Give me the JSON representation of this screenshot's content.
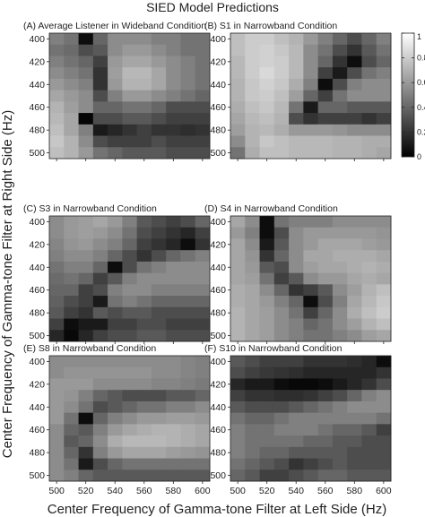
{
  "title": "SIED Model Predictions",
  "xlabel": "Center Frequency of Gamma-tone Filter at Left Side (Hz)",
  "ylabel": "Center Frequency of Gamma-tone Filter at Right Side (Hz)",
  "chart_data": {
    "type": "heatmap",
    "x": [
      500,
      510,
      520,
      530,
      540,
      550,
      560,
      570,
      580,
      590,
      600
    ],
    "y": [
      400,
      410,
      420,
      430,
      440,
      450,
      460,
      470,
      480,
      490,
      500
    ],
    "x_ticks": [
      "500",
      "520",
      "540",
      "560",
      "580",
      "600"
    ],
    "y_ticks": [
      "400",
      "420",
      "440",
      "460",
      "480",
      "500"
    ],
    "colorbar": {
      "range": [
        0,
        1
      ],
      "ticks": [
        "0",
        "0.2",
        "0.4",
        "0.6",
        "0.8",
        "1"
      ],
      "colormap": "gray"
    },
    "panels": [
      {
        "title": "(A) Average Listener in Wideband Condition",
        "values": [
          [
            0.5,
            0.45,
            0.05,
            0.4,
            0.55,
            0.55,
            0.55,
            0.5,
            0.5,
            0.45,
            0.45
          ],
          [
            0.45,
            0.42,
            0.3,
            0.35,
            0.55,
            0.6,
            0.6,
            0.55,
            0.5,
            0.45,
            0.45
          ],
          [
            0.5,
            0.45,
            0.4,
            0.25,
            0.6,
            0.65,
            0.65,
            0.6,
            0.55,
            0.5,
            0.45
          ],
          [
            0.55,
            0.5,
            0.45,
            0.2,
            0.62,
            0.72,
            0.72,
            0.65,
            0.55,
            0.5,
            0.45
          ],
          [
            0.6,
            0.55,
            0.5,
            0.2,
            0.6,
            0.7,
            0.7,
            0.65,
            0.55,
            0.5,
            0.45
          ],
          [
            0.65,
            0.6,
            0.55,
            0.3,
            0.5,
            0.6,
            0.6,
            0.55,
            0.5,
            0.45,
            0.4
          ],
          [
            0.7,
            0.62,
            0.55,
            0.4,
            0.4,
            0.45,
            0.45,
            0.4,
            0.3,
            0.3,
            0.3
          ],
          [
            0.72,
            0.65,
            0.02,
            0.3,
            0.3,
            0.35,
            0.35,
            0.3,
            0.25,
            0.25,
            0.25
          ],
          [
            0.75,
            0.65,
            0.5,
            0.1,
            0.15,
            0.2,
            0.25,
            0.2,
            0.2,
            0.18,
            0.2
          ],
          [
            0.78,
            0.7,
            0.55,
            0.3,
            0.25,
            0.25,
            0.25,
            0.3,
            0.25,
            0.25,
            0.25
          ],
          [
            0.75,
            0.7,
            0.6,
            0.45,
            0.4,
            0.35,
            0.35,
            0.35,
            0.3,
            0.3,
            0.3
          ]
        ]
      },
      {
        "title": "(B) S1 in Narrowband Condition",
        "values": [
          [
            0.75,
            0.8,
            0.8,
            0.75,
            0.7,
            0.6,
            0.5,
            0.4,
            0.3,
            0.4,
            0.5
          ],
          [
            0.75,
            0.8,
            0.82,
            0.78,
            0.72,
            0.55,
            0.45,
            0.3,
            0.2,
            0.35,
            0.45
          ],
          [
            0.72,
            0.8,
            0.82,
            0.8,
            0.72,
            0.55,
            0.4,
            0.2,
            0.05,
            0.3,
            0.4
          ],
          [
            0.72,
            0.8,
            0.85,
            0.8,
            0.72,
            0.55,
            0.25,
            0.1,
            0.3,
            0.45,
            0.5
          ],
          [
            0.7,
            0.78,
            0.82,
            0.78,
            0.68,
            0.5,
            0.05,
            0.3,
            0.5,
            0.55,
            0.55
          ],
          [
            0.7,
            0.78,
            0.8,
            0.75,
            0.62,
            0.4,
            0.25,
            0.45,
            0.55,
            0.55,
            0.55
          ],
          [
            0.68,
            0.75,
            0.78,
            0.72,
            0.45,
            0.1,
            0.4,
            0.4,
            0.35,
            0.35,
            0.35
          ],
          [
            0.65,
            0.72,
            0.75,
            0.7,
            0.3,
            0.2,
            0.25,
            0.25,
            0.25,
            0.2,
            0.25
          ],
          [
            0.62,
            0.7,
            0.72,
            0.68,
            0.6,
            0.6,
            0.6,
            0.58,
            0.55,
            0.55,
            0.55
          ],
          [
            0.55,
            0.7,
            0.78,
            0.75,
            0.72,
            0.72,
            0.72,
            0.7,
            0.7,
            0.68,
            0.68
          ],
          [
            0.45,
            0.68,
            0.75,
            0.75,
            0.72,
            0.72,
            0.72,
            0.7,
            0.7,
            0.68,
            0.65
          ]
        ]
      },
      {
        "title": "(C) S3 in Narrowband Condition",
        "values": [
          [
            0.55,
            0.6,
            0.62,
            0.65,
            0.6,
            0.5,
            0.35,
            0.3,
            0.25,
            0.3,
            0.4
          ],
          [
            0.55,
            0.6,
            0.62,
            0.6,
            0.55,
            0.45,
            0.3,
            0.25,
            0.2,
            0.15,
            0.25
          ],
          [
            0.52,
            0.58,
            0.6,
            0.55,
            0.5,
            0.4,
            0.25,
            0.2,
            0.15,
            0.05,
            0.2
          ],
          [
            0.5,
            0.55,
            0.55,
            0.5,
            0.4,
            0.3,
            0.2,
            0.3,
            0.4,
            0.45,
            0.5
          ],
          [
            0.45,
            0.5,
            0.5,
            0.4,
            0.05,
            0.3,
            0.45,
            0.5,
            0.55,
            0.55,
            0.55
          ],
          [
            0.42,
            0.45,
            0.4,
            0.25,
            0.35,
            0.5,
            0.55,
            0.55,
            0.55,
            0.55,
            0.55
          ],
          [
            0.4,
            0.4,
            0.25,
            0.3,
            0.5,
            0.55,
            0.55,
            0.5,
            0.5,
            0.5,
            0.5
          ],
          [
            0.38,
            0.3,
            0.25,
            0.1,
            0.45,
            0.5,
            0.45,
            0.4,
            0.4,
            0.4,
            0.4
          ],
          [
            0.35,
            0.25,
            0.2,
            0.35,
            0.3,
            0.35,
            0.35,
            0.3,
            0.3,
            0.3,
            0.3
          ],
          [
            0.25,
            0.05,
            0.1,
            0.1,
            0.25,
            0.25,
            0.3,
            0.3,
            0.25,
            0.25,
            0.25
          ],
          [
            0.15,
            0.03,
            0.15,
            0.25,
            0.3,
            0.3,
            0.35,
            0.35,
            0.3,
            0.3,
            0.3
          ]
        ]
      },
      {
        "title": "(D) S4 in Narrowband Condition",
        "values": [
          [
            0.65,
            0.55,
            0.05,
            0.45,
            0.5,
            0.5,
            0.5,
            0.55,
            0.55,
            0.55,
            0.55
          ],
          [
            0.6,
            0.5,
            0.05,
            0.3,
            0.55,
            0.6,
            0.6,
            0.6,
            0.6,
            0.6,
            0.58
          ],
          [
            0.65,
            0.55,
            0.1,
            0.35,
            0.55,
            0.6,
            0.65,
            0.65,
            0.65,
            0.62,
            0.6
          ],
          [
            0.65,
            0.58,
            0.2,
            0.4,
            0.55,
            0.65,
            0.65,
            0.68,
            0.68,
            0.68,
            0.65
          ],
          [
            0.65,
            0.6,
            0.35,
            0.3,
            0.55,
            0.62,
            0.65,
            0.65,
            0.68,
            0.7,
            0.68
          ],
          [
            0.65,
            0.62,
            0.45,
            0.25,
            0.35,
            0.55,
            0.6,
            0.6,
            0.65,
            0.68,
            0.65
          ],
          [
            0.68,
            0.65,
            0.55,
            0.4,
            0.2,
            0.25,
            0.35,
            0.55,
            0.62,
            0.7,
            0.75
          ],
          [
            0.68,
            0.65,
            0.6,
            0.5,
            0.4,
            0.05,
            0.3,
            0.5,
            0.65,
            0.72,
            0.78
          ],
          [
            0.7,
            0.65,
            0.62,
            0.55,
            0.45,
            0.25,
            0.4,
            0.55,
            0.68,
            0.75,
            0.8
          ],
          [
            0.7,
            0.65,
            0.62,
            0.55,
            0.5,
            0.4,
            0.45,
            0.55,
            0.62,
            0.7,
            0.75
          ],
          [
            0.7,
            0.65,
            0.62,
            0.55,
            0.5,
            0.45,
            0.45,
            0.5,
            0.55,
            0.62,
            0.65
          ]
        ]
      },
      {
        "title": "(E) S8 in Narrowband Condition",
        "values": [
          [
            0.55,
            0.55,
            0.55,
            0.55,
            0.55,
            0.55,
            0.55,
            0.55,
            0.55,
            0.52,
            0.5
          ],
          [
            0.55,
            0.58,
            0.58,
            0.58,
            0.58,
            0.58,
            0.58,
            0.55,
            0.55,
            0.52,
            0.5
          ],
          [
            0.6,
            0.6,
            0.6,
            0.55,
            0.55,
            0.55,
            0.55,
            0.52,
            0.52,
            0.5,
            0.48
          ],
          [
            0.6,
            0.58,
            0.5,
            0.4,
            0.35,
            0.3,
            0.3,
            0.3,
            0.35,
            0.35,
            0.4
          ],
          [
            0.6,
            0.55,
            0.45,
            0.3,
            0.35,
            0.4,
            0.45,
            0.45,
            0.5,
            0.5,
            0.55
          ],
          [
            0.6,
            0.45,
            0.05,
            0.4,
            0.5,
            0.55,
            0.6,
            0.6,
            0.62,
            0.62,
            0.6
          ],
          [
            0.55,
            0.4,
            0.35,
            0.5,
            0.6,
            0.65,
            0.68,
            0.7,
            0.7,
            0.68,
            0.65
          ],
          [
            0.55,
            0.35,
            0.4,
            0.55,
            0.68,
            0.72,
            0.72,
            0.72,
            0.7,
            0.68,
            0.65
          ],
          [
            0.55,
            0.4,
            0.2,
            0.5,
            0.6,
            0.65,
            0.65,
            0.65,
            0.62,
            0.6,
            0.58
          ],
          [
            0.55,
            0.45,
            0.1,
            0.3,
            0.4,
            0.45,
            0.45,
            0.45,
            0.45,
            0.45,
            0.45
          ],
          [
            0.55,
            0.5,
            0.4,
            0.35,
            0.35,
            0.35,
            0.35,
            0.35,
            0.35,
            0.35,
            0.35
          ]
        ]
      },
      {
        "title": "(F) S10 in Narrowband Condition",
        "values": [
          [
            0.35,
            0.3,
            0.25,
            0.25,
            0.25,
            0.2,
            0.2,
            0.2,
            0.18,
            0.15,
            0.05
          ],
          [
            0.3,
            0.25,
            0.22,
            0.2,
            0.18,
            0.15,
            0.15,
            0.15,
            0.15,
            0.15,
            0.2
          ],
          [
            0.15,
            0.1,
            0.1,
            0.05,
            0.03,
            0.03,
            0.05,
            0.1,
            0.15,
            0.2,
            0.3
          ],
          [
            0.25,
            0.2,
            0.2,
            0.18,
            0.18,
            0.2,
            0.25,
            0.3,
            0.4,
            0.5,
            0.55
          ],
          [
            0.35,
            0.3,
            0.3,
            0.3,
            0.35,
            0.4,
            0.45,
            0.5,
            0.55,
            0.55,
            0.55
          ],
          [
            0.45,
            0.4,
            0.4,
            0.45,
            0.5,
            0.5,
            0.5,
            0.5,
            0.5,
            0.5,
            0.45
          ],
          [
            0.5,
            0.45,
            0.45,
            0.5,
            0.5,
            0.5,
            0.45,
            0.4,
            0.4,
            0.35,
            0.25
          ],
          [
            0.5,
            0.45,
            0.45,
            0.45,
            0.45,
            0.4,
            0.4,
            0.35,
            0.35,
            0.3,
            0.3
          ],
          [
            0.5,
            0.45,
            0.4,
            0.4,
            0.35,
            0.35,
            0.35,
            0.35,
            0.3,
            0.3,
            0.3
          ],
          [
            0.45,
            0.4,
            0.35,
            0.3,
            0.2,
            0.25,
            0.3,
            0.35,
            0.3,
            0.3,
            0.3
          ],
          [
            0.4,
            0.35,
            0.25,
            0.25,
            0.3,
            0.35,
            0.4,
            0.4,
            0.35,
            0.35,
            0.35
          ]
        ]
      }
    ]
  }
}
